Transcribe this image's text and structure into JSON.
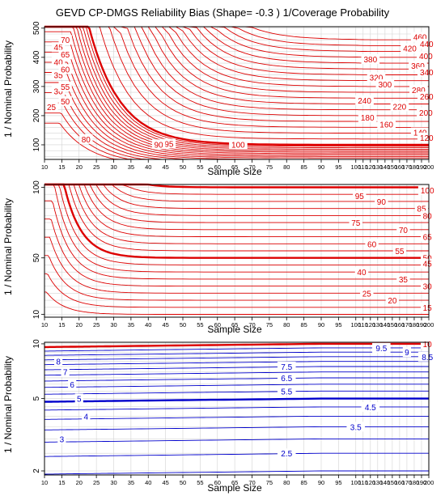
{
  "figure": {
    "title": "GEVD CP-DMGS Reliability Bias (Shape= -0.3 ) 1/Coverage Probability",
    "xlabel": "Sample Size",
    "ylabel": "1 / Nominal Probability"
  },
  "chart_data": [
    {
      "type": "line",
      "x_ticks": [
        10,
        15,
        20,
        25,
        30,
        35,
        40,
        45,
        50,
        55,
        60,
        65,
        70,
        75,
        80,
        85,
        90,
        95,
        100,
        110,
        120,
        130,
        140,
        150,
        160,
        170,
        180,
        190,
        200
      ],
      "y_ticks": [
        100,
        200,
        300,
        400,
        500
      ],
      "y_tick_labels": [
        "100",
        "200",
        "300",
        "400",
        "500"
      ],
      "xlim": [
        10,
        200
      ],
      "ylim": [
        50,
        505
      ],
      "contour_color": "#dd0000",
      "contour_levels": [
        25,
        30,
        35,
        40,
        45,
        50,
        55,
        60,
        65,
        70,
        75,
        80,
        85,
        90,
        95,
        100,
        120,
        140,
        160,
        180,
        200,
        220,
        240,
        260,
        280,
        300,
        320,
        340,
        360,
        380,
        400,
        420,
        440,
        460
      ],
      "contour_labels": [
        {
          "text": "460",
          "x": 188,
          "y": 470
        },
        {
          "text": "440",
          "x": 197,
          "y": 447
        },
        {
          "text": "420",
          "x": 174,
          "y": 431
        },
        {
          "text": "400",
          "x": 196,
          "y": 405
        },
        {
          "text": "380",
          "x": 120,
          "y": 394
        },
        {
          "text": "360",
          "x": 185,
          "y": 372
        },
        {
          "text": "340",
          "x": 197,
          "y": 350
        },
        {
          "text": "320",
          "x": 128,
          "y": 332
        },
        {
          "text": "300",
          "x": 140,
          "y": 308
        },
        {
          "text": "280",
          "x": 186,
          "y": 289
        },
        {
          "text": "260",
          "x": 197,
          "y": 266
        },
        {
          "text": "240",
          "x": 112,
          "y": 253
        },
        {
          "text": "220",
          "x": 160,
          "y": 232
        },
        {
          "text": "200",
          "x": 196,
          "y": 211
        },
        {
          "text": "180",
          "x": 116,
          "y": 194
        },
        {
          "text": "160",
          "x": 142,
          "y": 170
        },
        {
          "text": "140",
          "x": 188,
          "y": 143
        },
        {
          "text": "120",
          "x": 197,
          "y": 125
        },
        {
          "text": "100",
          "x": 66,
          "y": 102
        },
        {
          "text": "95",
          "x": 46,
          "y": 104
        },
        {
          "text": "90",
          "x": 43,
          "y": 102
        },
        {
          "text": "45",
          "x": 14,
          "y": 435
        },
        {
          "text": "40",
          "x": 14,
          "y": 385
        },
        {
          "text": "35",
          "x": 14,
          "y": 340
        },
        {
          "text": "30",
          "x": 14,
          "y": 285
        },
        {
          "text": "25",
          "x": 12,
          "y": 230
        },
        {
          "text": "70",
          "x": 16,
          "y": 460
        },
        {
          "text": "65",
          "x": 16,
          "y": 410
        },
        {
          "text": "60",
          "x": 16,
          "y": 360
        },
        {
          "text": "55",
          "x": 16,
          "y": 300
        },
        {
          "text": "50",
          "x": 16,
          "y": 250
        },
        {
          "text": "80",
          "x": 22,
          "y": 120
        }
      ]
    },
    {
      "type": "line",
      "x_ticks": [
        10,
        15,
        20,
        25,
        30,
        35,
        40,
        45,
        50,
        55,
        60,
        65,
        70,
        75,
        80,
        85,
        90,
        95,
        100,
        110,
        120,
        130,
        140,
        150,
        160,
        170,
        180,
        190,
        200
      ],
      "y_ticks": [
        10,
        50,
        100
      ],
      "y_tick_labels": [
        "10",
        "50",
        "100"
      ],
      "xlim": [
        10,
        200
      ],
      "ylim": [
        8,
        102
      ],
      "contour_color": "#dd0000",
      "contour_levels": [
        10,
        15,
        20,
        25,
        30,
        35,
        40,
        45,
        50,
        55,
        60,
        65,
        70,
        75,
        80,
        85,
        90,
        95,
        100
      ],
      "contour_labels": [
        {
          "text": "100",
          "x": 198,
          "y": 98
        },
        {
          "text": "95",
          "x": 105,
          "y": 94
        },
        {
          "text": "90",
          "x": 135,
          "y": 90
        },
        {
          "text": "85",
          "x": 190,
          "y": 85
        },
        {
          "text": "80",
          "x": 198,
          "y": 80
        },
        {
          "text": "75",
          "x": 100,
          "y": 75
        },
        {
          "text": "70",
          "x": 165,
          "y": 70
        },
        {
          "text": "65",
          "x": 198,
          "y": 65
        },
        {
          "text": "60",
          "x": 122,
          "y": 60
        },
        {
          "text": "55",
          "x": 160,
          "y": 55
        },
        {
          "text": "50",
          "x": 198,
          "y": 50
        },
        {
          "text": "45",
          "x": 198,
          "y": 46
        },
        {
          "text": "40",
          "x": 108,
          "y": 40
        },
        {
          "text": "35",
          "x": 165,
          "y": 35
        },
        {
          "text": "30",
          "x": 198,
          "y": 30
        },
        {
          "text": "25",
          "x": 115,
          "y": 25
        },
        {
          "text": "20",
          "x": 150,
          "y": 20
        },
        {
          "text": "15",
          "x": 198,
          "y": 15
        }
      ]
    },
    {
      "type": "line",
      "x_ticks": [
        10,
        15,
        20,
        25,
        30,
        35,
        40,
        45,
        50,
        55,
        60,
        65,
        70,
        75,
        80,
        85,
        90,
        95,
        100,
        110,
        120,
        130,
        140,
        150,
        160,
        170,
        180,
        190,
        200
      ],
      "y_ticks": [
        2,
        5,
        10
      ],
      "y_tick_labels": [
        "2",
        "5",
        "10"
      ],
      "xlim": [
        10,
        200
      ],
      "ylim": [
        1.9,
        10.2
      ],
      "contour_color": "#0000cc",
      "highlight_color": "#dd0000",
      "contour_levels": [
        2,
        2.5,
        3,
        3.5,
        4,
        4.5,
        5,
        5.5,
        6,
        6.5,
        7,
        7.5,
        8,
        8.5,
        9,
        9.5,
        10
      ],
      "contour_labels": [
        {
          "text": "10",
          "x": 198,
          "y": 10
        },
        {
          "text": "9.5",
          "x": 135,
          "y": 9.5
        },
        {
          "text": "9",
          "x": 170,
          "y": 9
        },
        {
          "text": "8.5",
          "x": 198,
          "y": 8.5
        },
        {
          "text": "8",
          "x": 14,
          "y": 8
        },
        {
          "text": "7.5",
          "x": 80,
          "y": 7.5
        },
        {
          "text": "7",
          "x": 16,
          "y": 7
        },
        {
          "text": "6.5",
          "x": 80,
          "y": 6.5
        },
        {
          "text": "6",
          "x": 18,
          "y": 6
        },
        {
          "text": "5.5",
          "x": 80,
          "y": 5.5
        },
        {
          "text": "5",
          "x": 20,
          "y": 5
        },
        {
          "text": "4.5",
          "x": 120,
          "y": 4.5
        },
        {
          "text": "4",
          "x": 22,
          "y": 4
        },
        {
          "text": "3.5",
          "x": 100,
          "y": 3.5
        },
        {
          "text": "3",
          "x": 15,
          "y": 3
        },
        {
          "text": "2.5",
          "x": 80,
          "y": 2.5
        }
      ]
    }
  ]
}
